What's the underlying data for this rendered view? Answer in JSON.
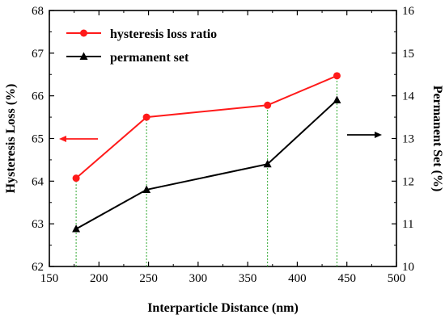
{
  "chart_data": {
    "type": "line",
    "x": [
      177,
      248,
      370,
      440
    ],
    "xlabel": "Interparticle Distance (nm)",
    "xlim": [
      150,
      500
    ],
    "xticks": [
      150,
      200,
      250,
      300,
      350,
      400,
      450,
      500
    ],
    "ylabel_left": "Hysteresis Loss (%)",
    "ylim_left": [
      62,
      68
    ],
    "yticks_left": [
      62,
      63,
      64,
      65,
      66,
      67,
      68
    ],
    "ylabel_right": "Permanent Set (%)",
    "ylim_right": [
      10,
      16
    ],
    "yticks_right": [
      10,
      11,
      12,
      13,
      14,
      15,
      16
    ],
    "grid": false,
    "legend_position": "top-left",
    "series": [
      {
        "name": "hysteresis loss ratio",
        "axis": "left",
        "values": [
          64.07,
          65.5,
          65.78,
          66.47
        ],
        "color": "#ff1a1a",
        "marker": "circle"
      },
      {
        "name": "permanent set",
        "axis": "right",
        "values": [
          10.88,
          11.8,
          12.4,
          13.9
        ],
        "color": "#000000",
        "marker": "triangle"
      }
    ],
    "annotations": [
      {
        "type": "arrow",
        "direction": "left",
        "color": "#ff1a1a",
        "meaning": "points to left axis"
      },
      {
        "type": "arrow",
        "direction": "right",
        "color": "#000000",
        "meaning": "points to right axis"
      }
    ],
    "guide_lines": {
      "color": "#33aa33",
      "style": "dotted-vertical"
    }
  }
}
